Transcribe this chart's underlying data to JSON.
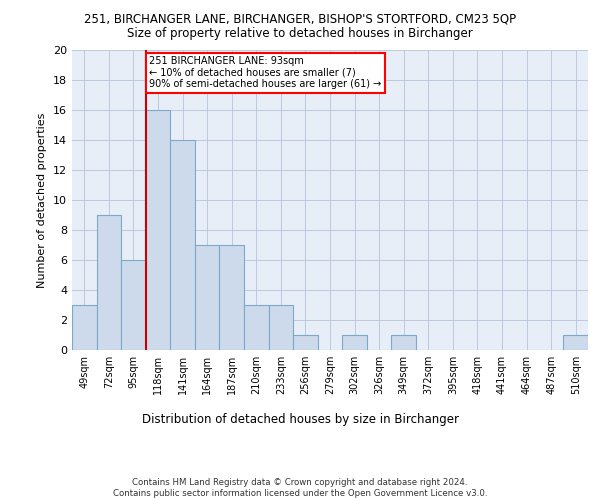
{
  "title": "251, BIRCHANGER LANE, BIRCHANGER, BISHOP'S STORTFORD, CM23 5QP",
  "subtitle": "Size of property relative to detached houses in Birchanger",
  "xlabel": "Distribution of detached houses by size in Birchanger",
  "ylabel": "Number of detached properties",
  "bar_color": "#ccdaeb",
  "bar_edge_color": "#7aaac8",
  "background_color": "#e8eef8",
  "categories": [
    "49sqm",
    "72sqm",
    "95sqm",
    "118sqm",
    "141sqm",
    "164sqm",
    "187sqm",
    "210sqm",
    "233sqm",
    "256sqm",
    "279sqm",
    "302sqm",
    "326sqm",
    "349sqm",
    "372sqm",
    "395sqm",
    "418sqm",
    "441sqm",
    "464sqm",
    "487sqm",
    "510sqm"
  ],
  "values": [
    3,
    9,
    6,
    16,
    14,
    7,
    7,
    3,
    3,
    1,
    0,
    1,
    0,
    1,
    0,
    0,
    0,
    0,
    0,
    0,
    1
  ],
  "ylim": [
    0,
    20
  ],
  "yticks": [
    0,
    2,
    4,
    6,
    8,
    10,
    12,
    14,
    16,
    18,
    20
  ],
  "red_line_index": 2,
  "annotation_text": "251 BIRCHANGER LANE: 93sqm\n← 10% of detached houses are smaller (7)\n90% of semi-detached houses are larger (61) →",
  "footer": "Contains HM Land Registry data © Crown copyright and database right 2024.\nContains public sector information licensed under the Open Government Licence v3.0.",
  "grid_color": "#bcc8dc",
  "red_line_color": "#cc0000"
}
